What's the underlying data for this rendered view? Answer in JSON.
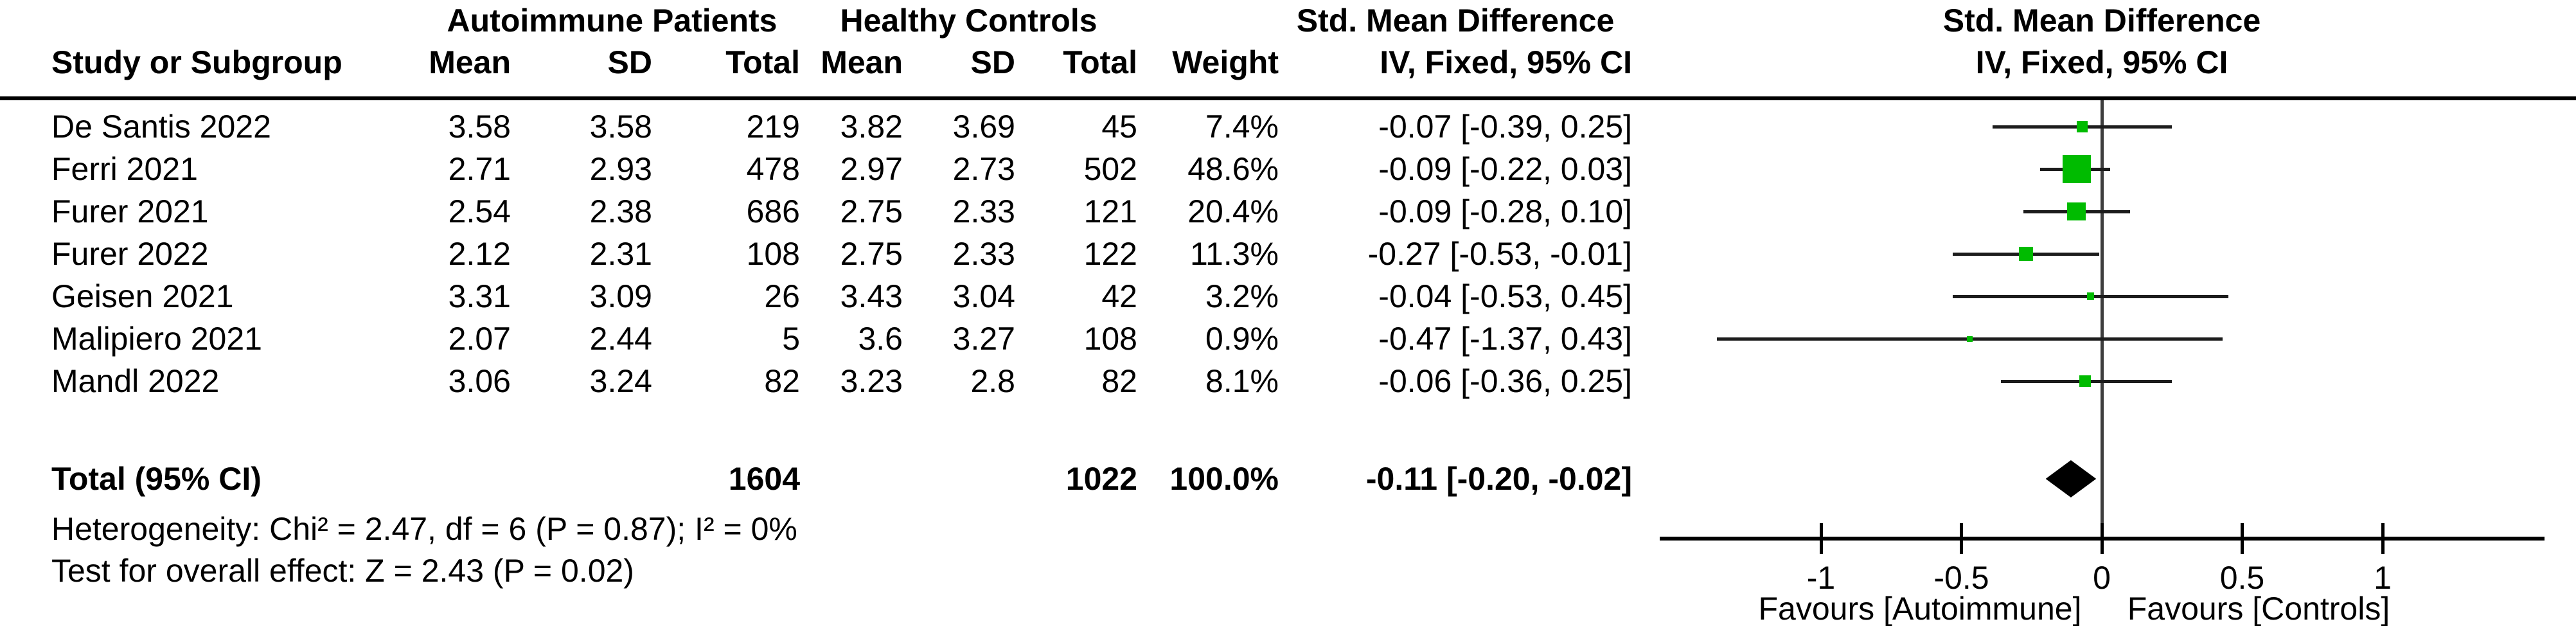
{
  "table": {
    "group_headers": {
      "autoimmune": "Autoimmune Patients",
      "healthy": "Healthy Controls",
      "smd_text": "Std. Mean Difference",
      "smd_plot": "Std. Mean Difference"
    },
    "col_headers": {
      "study": "Study or Subgroup",
      "autoimmune": [
        "Mean",
        "SD",
        "Total"
      ],
      "healthy": [
        "Mean",
        "SD",
        "Total"
      ],
      "weight": "Weight",
      "ci": "IV, Fixed, 95% CI",
      "ci_plot": "IV, Fixed, 95% CI"
    },
    "rows": [
      {
        "study": "De Santis 2022",
        "a_mean": "3.58",
        "a_sd": "3.58",
        "a_total": "219",
        "h_mean": "3.82",
        "h_sd": "3.69",
        "h_total": "45",
        "weight": "7.4%",
        "ci_text": "-0.07 [-0.39, 0.25]"
      },
      {
        "study": "Ferri 2021",
        "a_mean": "2.71",
        "a_sd": "2.93",
        "a_total": "478",
        "h_mean": "2.97",
        "h_sd": "2.73",
        "h_total": "502",
        "weight": "48.6%",
        "ci_text": "-0.09 [-0.22, 0.03]"
      },
      {
        "study": "Furer 2021",
        "a_mean": "2.54",
        "a_sd": "2.38",
        "a_total": "686",
        "h_mean": "2.75",
        "h_sd": "2.33",
        "h_total": "121",
        "weight": "20.4%",
        "ci_text": "-0.09 [-0.28, 0.10]"
      },
      {
        "study": "Furer 2022",
        "a_mean": "2.12",
        "a_sd": "2.31",
        "a_total": "108",
        "h_mean": "2.75",
        "h_sd": "2.33",
        "h_total": "122",
        "weight": "11.3%",
        "ci_text": "-0.27 [-0.53, -0.01]"
      },
      {
        "study": "Geisen 2021",
        "a_mean": "3.31",
        "a_sd": "3.09",
        "a_total": "26",
        "h_mean": "3.43",
        "h_sd": "3.04",
        "h_total": "42",
        "weight": "3.2%",
        "ci_text": "-0.04 [-0.53, 0.45]"
      },
      {
        "study": "Malipiero 2021",
        "a_mean": "2.07",
        "a_sd": "2.44",
        "a_total": "5",
        "h_mean": "3.6",
        "h_sd": "3.27",
        "h_total": "108",
        "weight": "0.9%",
        "ci_text": "-0.47 [-1.37, 0.43]"
      },
      {
        "study": "Mandl 2022",
        "a_mean": "3.06",
        "a_sd": "3.24",
        "a_total": "82",
        "h_mean": "3.23",
        "h_sd": "2.8",
        "h_total": "82",
        "weight": "8.1%",
        "ci_text": "-0.06 [-0.36, 0.25]"
      }
    ],
    "total_row": {
      "label": "Total (95% CI)",
      "a_total": "1604",
      "h_total": "1022",
      "weight": "100.0%",
      "ci_text": "-0.11 [-0.20, -0.02]"
    },
    "heterogeneity": "Heterogeneity: Chi² = 2.47, df = 6 (P = 0.87); I² = 0%",
    "overall_effect": "Test for overall effect: Z = 2.43 (P = 0.02)"
  },
  "plot": {
    "ticks": [
      {
        "v": -1,
        "label": "-1"
      },
      {
        "v": -0.5,
        "label": "-0.5"
      },
      {
        "v": 0,
        "label": "0"
      },
      {
        "v": 0.5,
        "label": "0.5"
      },
      {
        "v": 1,
        "label": "1"
      }
    ],
    "favours_left": "Favours [Autoimmune]",
    "favours_right": "Favours [Controls]",
    "colors": {
      "square": "#00bb00",
      "diamond": "#000000",
      "ci_line": "#1c1c1c",
      "zero_line": "#3d3d3d",
      "axis": "#000000"
    }
  },
  "chart_data": {
    "type": "forest",
    "title": "Std. Mean Difference, IV, Fixed, 95% CI — Autoimmune Patients vs Healthy Controls",
    "effect_measure": "Std. Mean Difference (IV, Fixed, 95% CI)",
    "studies": [
      {
        "name": "De Santis 2022",
        "autoimmune_mean": 3.58,
        "autoimmune_sd": 3.58,
        "autoimmune_total": 219,
        "control_mean": 3.82,
        "control_sd": 3.69,
        "control_total": 45,
        "weight_pct": 7.4,
        "smd": -0.07,
        "ci_low": -0.39,
        "ci_high": 0.25
      },
      {
        "name": "Ferri 2021",
        "autoimmune_mean": 2.71,
        "autoimmune_sd": 2.93,
        "autoimmune_total": 478,
        "control_mean": 2.97,
        "control_sd": 2.73,
        "control_total": 502,
        "weight_pct": 48.6,
        "smd": -0.09,
        "ci_low": -0.22,
        "ci_high": 0.03
      },
      {
        "name": "Furer 2021",
        "autoimmune_mean": 2.54,
        "autoimmune_sd": 2.38,
        "autoimmune_total": 686,
        "control_mean": 2.75,
        "control_sd": 2.33,
        "control_total": 121,
        "weight_pct": 20.4,
        "smd": -0.09,
        "ci_low": -0.28,
        "ci_high": 0.1
      },
      {
        "name": "Furer 2022",
        "autoimmune_mean": 2.12,
        "autoimmune_sd": 2.31,
        "autoimmune_total": 108,
        "control_mean": 2.75,
        "control_sd": 2.33,
        "control_total": 122,
        "weight_pct": 11.3,
        "smd": -0.27,
        "ci_low": -0.53,
        "ci_high": -0.01
      },
      {
        "name": "Geisen 2021",
        "autoimmune_mean": 3.31,
        "autoimmune_sd": 3.09,
        "autoimmune_total": 26,
        "control_mean": 3.43,
        "control_sd": 3.04,
        "control_total": 42,
        "weight_pct": 3.2,
        "smd": -0.04,
        "ci_low": -0.53,
        "ci_high": 0.45
      },
      {
        "name": "Malipiero 2021",
        "autoimmune_mean": 2.07,
        "autoimmune_sd": 2.44,
        "autoimmune_total": 5,
        "control_mean": 3.6,
        "control_sd": 3.27,
        "control_total": 108,
        "weight_pct": 0.9,
        "smd": -0.47,
        "ci_low": -1.37,
        "ci_high": 0.43
      },
      {
        "name": "Mandl 2022",
        "autoimmune_mean": 3.06,
        "autoimmune_sd": 3.24,
        "autoimmune_total": 82,
        "control_mean": 3.23,
        "control_sd": 2.8,
        "control_total": 82,
        "weight_pct": 8.1,
        "smd": -0.06,
        "ci_low": -0.36,
        "ci_high": 0.25
      }
    ],
    "total": {
      "label": "Total (95% CI)",
      "autoimmune_total": 1604,
      "control_total": 1022,
      "weight_pct": 100.0,
      "smd": -0.11,
      "ci_low": -0.2,
      "ci_high": -0.02
    },
    "heterogeneity": {
      "chi2": 2.47,
      "df": 6,
      "p": 0.87,
      "i2_pct": 0
    },
    "overall_effect": {
      "z": 2.43,
      "p": 0.02
    },
    "xaxis": {
      "ticks": [
        -1,
        -0.5,
        0,
        0.5,
        1
      ],
      "drawn_range": [
        -1.58,
        1.57
      ],
      "favours_left": "Favours [Autoimmune]",
      "favours_right": "Favours [Controls]",
      "grid": false
    },
    "legend_position": "none"
  }
}
